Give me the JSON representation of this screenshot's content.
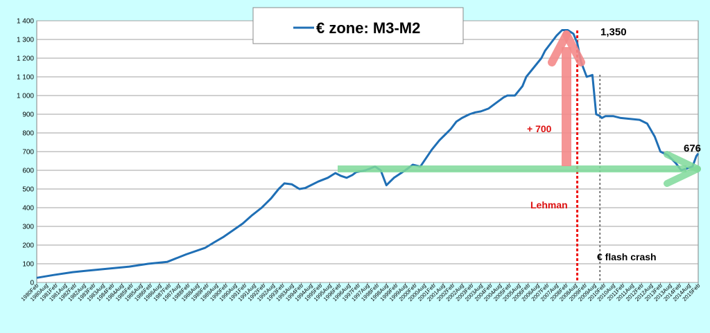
{
  "chart_data": {
    "type": "line",
    "title": "",
    "xlabel": "",
    "ylabel": "",
    "ylim": [
      0,
      1400
    ],
    "yticks": [
      0,
      100,
      200,
      300,
      400,
      500,
      600,
      700,
      800,
      900,
      1000,
      1100,
      1200,
      1300,
      1400
    ],
    "ytick_labels": [
      "0",
      "100",
      "200",
      "300",
      "400",
      "500",
      "600",
      "700",
      "800",
      "900",
      "1 000",
      "1 100",
      "1 200",
      "1 300",
      "1 400"
    ],
    "grid": true,
    "legend_position": "top-center",
    "x_start": "1980Feb",
    "x_end": "2015Feb",
    "xtick_labels": [
      "1980Feb",
      "1980Aug",
      "1981Feb",
      "1981Aug",
      "1982Feb",
      "1982Aug",
      "1983Feb",
      "1983Aug",
      "1984Feb",
      "1984Aug",
      "1985Feb",
      "1985Aug",
      "1986Feb",
      "1986Aug",
      "1987Feb",
      "1987Aug",
      "1988Feb",
      "1988Aug",
      "1989Feb",
      "1989Aug",
      "1990Feb",
      "1990Aug",
      "1991Feb",
      "1991Aug",
      "1992Feb",
      "1992Aug",
      "1993Feb",
      "1993Aug",
      "1994Feb",
      "1994Aug",
      "1995Feb",
      "1995Aug",
      "1996Feb",
      "1996Aug",
      "1997Feb",
      "1997Aug",
      "1998Feb",
      "1998Aug",
      "1999Feb",
      "1999Aug",
      "2000Feb",
      "2000Aug",
      "2001Feb",
      "2001Aug",
      "2002Feb",
      "2002Aug",
      "2003Feb",
      "2003Aug",
      "2004Feb",
      "2004Aug",
      "2005Feb",
      "2005Aug",
      "2006Feb",
      "2006Aug",
      "2007Feb",
      "2007Aug",
      "2008Feb",
      "2008Aug",
      "2009Feb",
      "2009Aug",
      "2010Feb",
      "2010Aug",
      "2011Feb",
      "2011Aug",
      "2012Feb",
      "2012Aug",
      "2013Feb",
      "2013Aug",
      "2014Feb",
      "2014Aug",
      "2015Feb"
    ],
    "series": [
      {
        "name": "€ zone: M3-M2",
        "color": "#1f6fb5",
        "x": [
          1980.1,
          1981.0,
          1982.0,
          1983.0,
          1984.0,
          1985.0,
          1986.0,
          1987.0,
          1988.0,
          1989.0,
          1989.5,
          1990.0,
          1990.5,
          1991.0,
          1991.5,
          1992.0,
          1992.5,
          1992.9,
          1993.2,
          1993.6,
          1994.0,
          1994.3,
          1994.6,
          1995.0,
          1995.5,
          1995.9,
          1996.2,
          1996.5,
          1996.8,
          1997.0,
          1997.5,
          1998.0,
          1998.3,
          1998.6,
          1998.8,
          1999.0,
          1999.3,
          1999.6,
          2000.0,
          2000.4,
          2000.8,
          2001.0,
          2001.4,
          2001.8,
          2002.0,
          2002.3,
          2002.6,
          2003.0,
          2003.3,
          2003.6,
          2004.0,
          2004.4,
          2004.8,
          2005.0,
          2005.4,
          2005.8,
          2006.0,
          2006.4,
          2006.8,
          2007.0,
          2007.3,
          2007.6,
          2007.9,
          2008.2,
          2008.5,
          2008.7,
          2008.9,
          2009.2,
          2009.5,
          2009.7,
          2009.9,
          2010.0,
          2010.2,
          2010.6,
          2011.0,
          2011.5,
          2012.0,
          2012.4,
          2012.8,
          2013.1,
          2013.5,
          2013.9,
          2014.2,
          2014.5,
          2014.8,
          2015.0,
          2015.1
        ],
        "y": [
          25,
          40,
          55,
          65,
          75,
          85,
          100,
          110,
          150,
          185,
          215,
          245,
          280,
          315,
          360,
          400,
          450,
          500,
          530,
          525,
          500,
          505,
          520,
          540,
          560,
          585,
          570,
          560,
          575,
          590,
          600,
          620,
          600,
          520,
          540,
          560,
          580,
          600,
          630,
          620,
          680,
          710,
          760,
          800,
          820,
          860,
          880,
          900,
          910,
          915,
          930,
          960,
          990,
          1000,
          1000,
          1050,
          1100,
          1150,
          1200,
          1240,
          1280,
          1320,
          1350,
          1350,
          1330,
          1280,
          1180,
          1100,
          1110,
          900,
          890,
          880,
          890,
          890,
          880,
          875,
          870,
          850,
          780,
          700,
          680,
          640,
          600,
          610,
          620,
          676,
          690
        ]
      }
    ],
    "annotations": [
      {
        "text": "1,350",
        "color": "#000000"
      },
      {
        "text": "676",
        "color": "#000000"
      },
      {
        "text": "+ 700",
        "color": "#dd1111"
      },
      {
        "text": "Lehman",
        "color": "#dd1111"
      },
      {
        "text": "€  flash  crash",
        "color": "#000000"
      }
    ],
    "reference_lines": [
      {
        "x": 2008.7,
        "color": "#ee1111"
      },
      {
        "x": 2009.9,
        "color": "#777777"
      }
    ]
  }
}
